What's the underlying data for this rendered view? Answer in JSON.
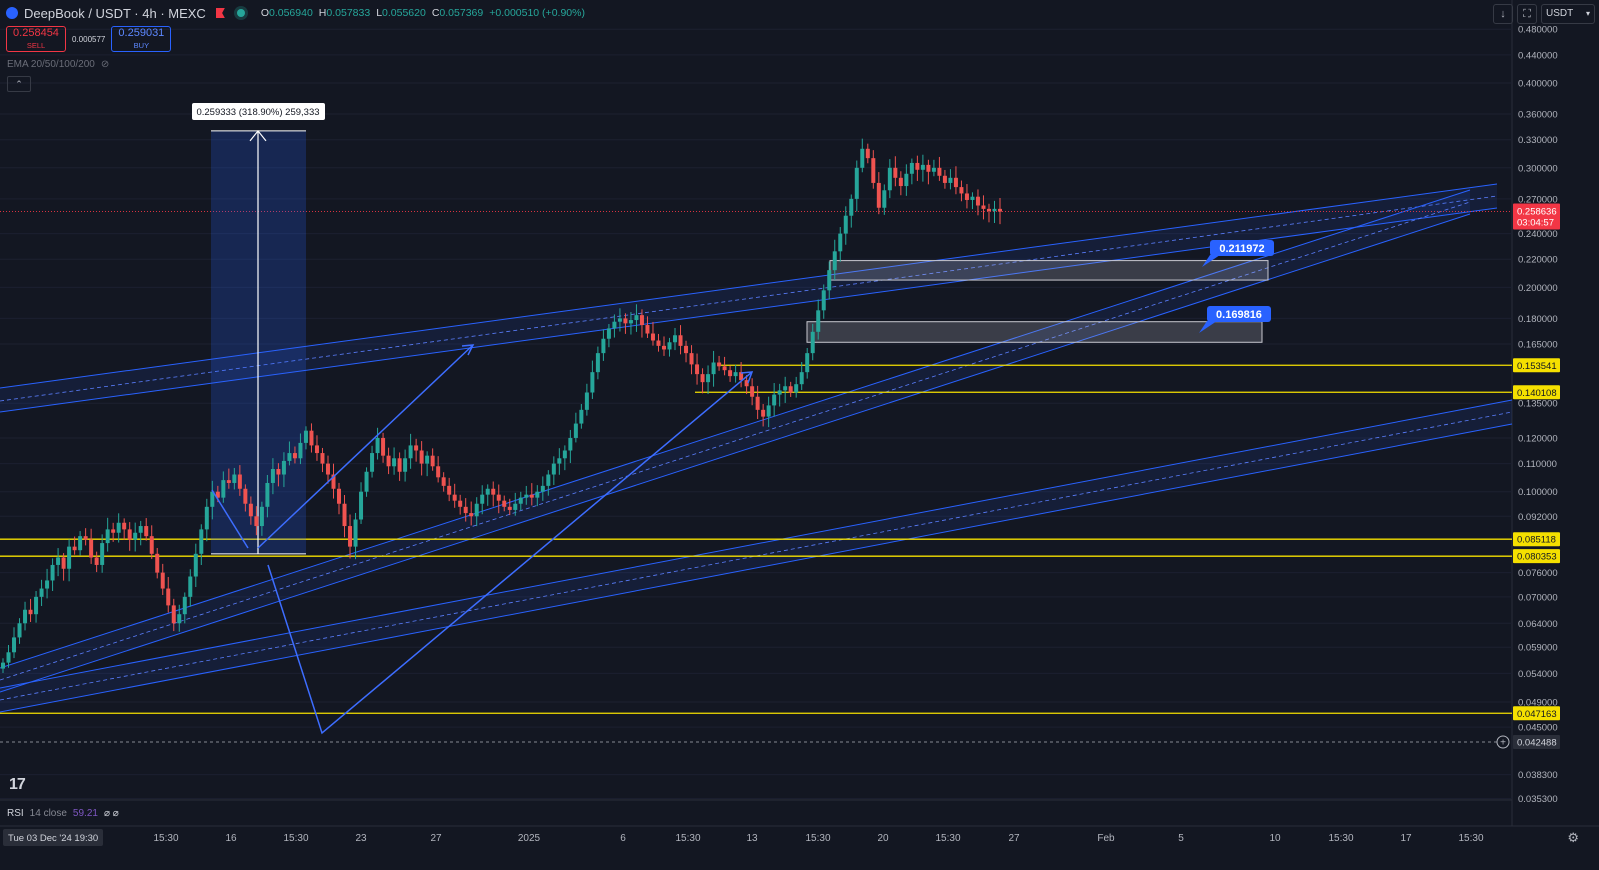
{
  "header": {
    "symbol_title": "DeepBook / USDT · 4h · MEXC",
    "ohlc": [
      {
        "k": "O",
        "v": "0.056940"
      },
      {
        "k": "H",
        "v": "0.057833"
      },
      {
        "k": "L",
        "v": "0.055620"
      },
      {
        "k": "C",
        "v": "0.057369"
      },
      {
        "k": "",
        "v": "+0.000510 (+0.90%)"
      }
    ]
  },
  "trade": {
    "sell_price": "0.258454",
    "sell_label": "SELL",
    "spread": "0.000577",
    "buy_price": "0.259031",
    "buy_label": "BUY"
  },
  "indicators": {
    "ema_label": "EMA 20/50/100/200",
    "rsi_name": "RSI",
    "rsi_params": "14 close",
    "rsi_value": "59.21",
    "rsi_extra": "⌀ ⌀"
  },
  "currency_select": "USDT",
  "colors": {
    "background": "#131722",
    "up": "#26a69a",
    "down": "#ef5350",
    "channel": "#2962ff",
    "level": "#f5e000",
    "price_tag": "#f23645",
    "callout": "#2962ff"
  },
  "chart_data": {
    "type": "candlestick",
    "price_axis_scale": "log",
    "price_axis_labels": [
      "0.480000",
      "0.440000",
      "0.400000",
      "0.360000",
      "0.330000",
      "0.300000",
      "0.270000",
      "0.240000",
      "0.220000",
      "0.200000",
      "0.180000",
      "0.165000",
      "0.135000",
      "0.120000",
      "0.110000",
      "0.100000",
      "0.092000",
      "0.076000",
      "0.070000",
      "0.064000",
      "0.059000",
      "0.054000",
      "0.049000",
      "0.045000",
      "0.038300",
      "0.035300"
    ],
    "time_axis_labels": [
      "Tue 03 Dec '24  19:30",
      "15:30",
      "16",
      "15:30",
      "23",
      "27",
      "2025",
      "6",
      "15:30",
      "13",
      "15:30",
      "20",
      "15:30",
      "27",
      "Feb",
      "5",
      "10",
      "15:30",
      "17",
      "15:30"
    ],
    "current_price": "0.258636",
    "countdown": "03:04:57",
    "crosshair_price": "0.042488",
    "horizontal_levels": [
      "0.153541",
      "0.140108",
      "0.085118",
      "0.080353",
      "0.047163"
    ],
    "zones": [
      {
        "label": "0.211972",
        "low": 0.205,
        "high": 0.219
      },
      {
        "label": "0.169816",
        "low": 0.166,
        "high": 0.178
      }
    ],
    "measure": {
      "label": "0.259333 (318.90%) 259,333",
      "from": 0.081,
      "to": 0.34
    },
    "series": {
      "closes": [
        0.056,
        0.058,
        0.061,
        0.064,
        0.067,
        0.066,
        0.07,
        0.072,
        0.074,
        0.078,
        0.08,
        0.077,
        0.083,
        0.082,
        0.086,
        0.085,
        0.08,
        0.078,
        0.084,
        0.088,
        0.087,
        0.09,
        0.088,
        0.085,
        0.087,
        0.089,
        0.086,
        0.081,
        0.076,
        0.072,
        0.068,
        0.064,
        0.066,
        0.07,
        0.075,
        0.081,
        0.088,
        0.095,
        0.1,
        0.098,
        0.104,
        0.103,
        0.106,
        0.101,
        0.096,
        0.092,
        0.089,
        0.095,
        0.103,
        0.108,
        0.106,
        0.111,
        0.114,
        0.112,
        0.118,
        0.123,
        0.117,
        0.114,
        0.11,
        0.106,
        0.101,
        0.096,
        0.089,
        0.083,
        0.091,
        0.1,
        0.107,
        0.114,
        0.12,
        0.113,
        0.109,
        0.112,
        0.107,
        0.112,
        0.117,
        0.115,
        0.11,
        0.113,
        0.109,
        0.105,
        0.102,
        0.099,
        0.097,
        0.095,
        0.093,
        0.092,
        0.096,
        0.099,
        0.101,
        0.099,
        0.097,
        0.095,
        0.094,
        0.096,
        0.098,
        0.099,
        0.098,
        0.1,
        0.102,
        0.106,
        0.11,
        0.112,
        0.115,
        0.12,
        0.126,
        0.132,
        0.14,
        0.15,
        0.16,
        0.168,
        0.174,
        0.178,
        0.18,
        0.177,
        0.179,
        0.182,
        0.176,
        0.171,
        0.167,
        0.164,
        0.162,
        0.166,
        0.17,
        0.164,
        0.16,
        0.154,
        0.149,
        0.145,
        0.149,
        0.155,
        0.153,
        0.151,
        0.148,
        0.15,
        0.146,
        0.143,
        0.138,
        0.132,
        0.129,
        0.134,
        0.139,
        0.141,
        0.143,
        0.14,
        0.144,
        0.15,
        0.16,
        0.172,
        0.185,
        0.198,
        0.212,
        0.226,
        0.24,
        0.255,
        0.27,
        0.3,
        0.32,
        0.31,
        0.285,
        0.262,
        0.278,
        0.3,
        0.29,
        0.282,
        0.294,
        0.305,
        0.298,
        0.303,
        0.296,
        0.3,
        0.292,
        0.285,
        0.29,
        0.281,
        0.275,
        0.269,
        0.272,
        0.264,
        0.261,
        0.259,
        0.261,
        0.2586
      ]
    }
  }
}
